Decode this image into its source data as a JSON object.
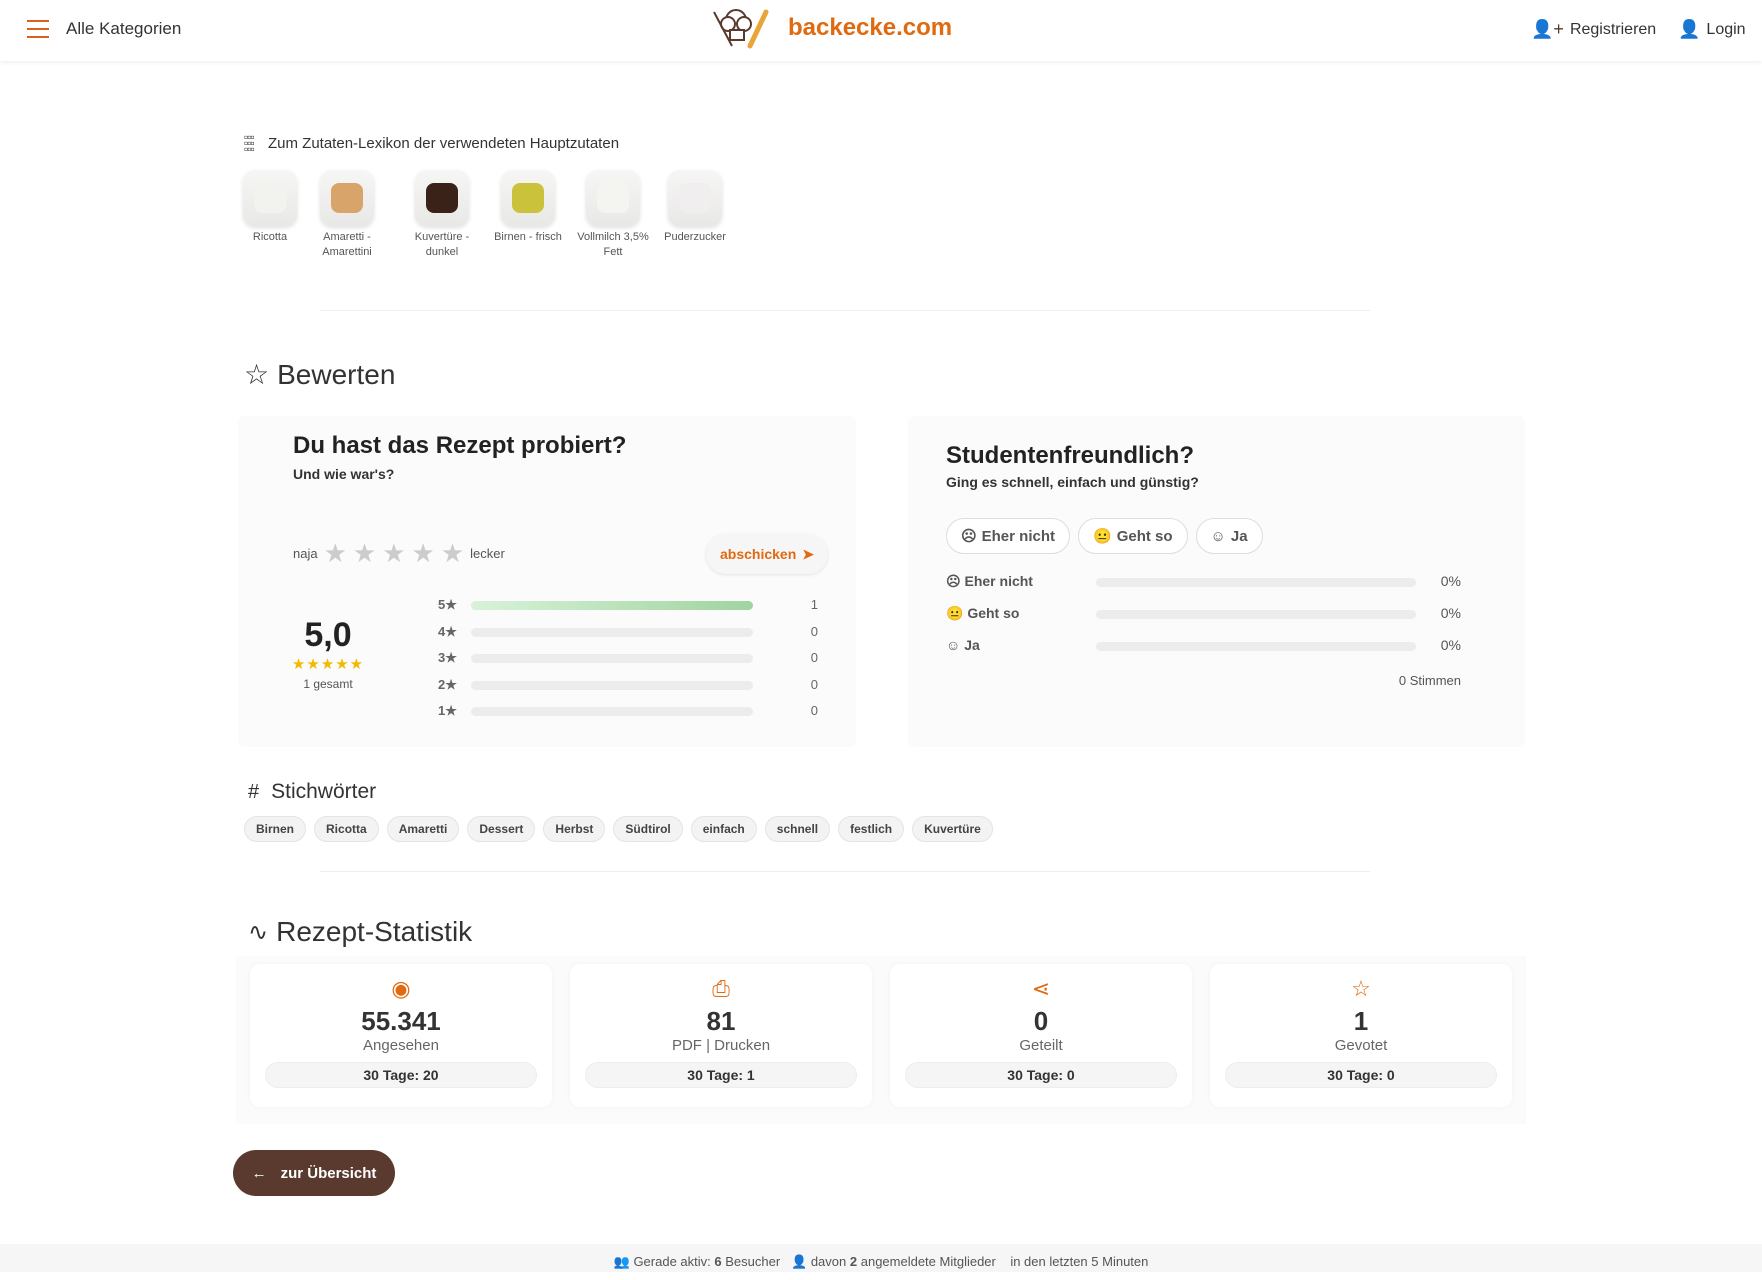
{
  "header": {
    "menu_label": "Alle Kategorien",
    "logo_text": "backecke.com",
    "register": "Registrieren",
    "login": "Login"
  },
  "ingredients": {
    "heading": "Zum Zutaten-Lexikon der verwendeten Hauptzutaten",
    "items": [
      {
        "label": "Ricotta",
        "color": "#f2f2ee"
      },
      {
        "label": "Amaretti - Amarettini",
        "color": "#d9a46a"
      },
      {
        "label": "Kuvertüre - dunkel",
        "color": "#3a2218"
      },
      {
        "label": "Birnen - frisch",
        "color": "#c9c23a"
      },
      {
        "label": "Vollmilch 3,5% Fett",
        "color": "#f4f4f0"
      },
      {
        "label": "Puderzucker",
        "color": "#f0eeee"
      }
    ]
  },
  "rating": {
    "title": "Bewerten",
    "card_title": "Du hast das Rezept probiert?",
    "card_sub": "Und wie war's?",
    "low": "naja",
    "high": "lecker",
    "submit": "abschicken",
    "average": "5,0",
    "total": "1 gesamt",
    "rows": [
      {
        "label": "5★",
        "count": "1",
        "fraction": 1
      },
      {
        "label": "4★",
        "count": "0",
        "fraction": 0
      },
      {
        "label": "3★",
        "count": "0",
        "fraction": 0
      },
      {
        "label": "2★",
        "count": "0",
        "fraction": 0
      },
      {
        "label": "1★",
        "count": "0",
        "fraction": 0
      }
    ]
  },
  "student": {
    "title": "Studentenfreundlich?",
    "sub": "Ging es schnell, einfach und günstig?",
    "options": [
      "Eher nicht",
      "Geht so",
      "Ja"
    ],
    "results": [
      {
        "label": "Eher nicht",
        "pct": "0%"
      },
      {
        "label": "Geht so",
        "pct": "0%"
      },
      {
        "label": "Ja",
        "pct": "0%"
      }
    ],
    "votes": "0 Stimmen"
  },
  "tags": {
    "title": "Stichwörter",
    "items": [
      "Birnen",
      "Ricotta",
      "Amaretti",
      "Dessert",
      "Herbst",
      "Südtirol",
      "einfach",
      "schnell",
      "festlich",
      "Kuvertüre"
    ]
  },
  "stats": {
    "title": "Rezept-Statistik",
    "items": [
      {
        "icon": "eye-icon",
        "num": "55.341",
        "label": "Angesehen",
        "d30": "30 Tage: 20"
      },
      {
        "icon": "printer-icon",
        "num": "81",
        "label": "PDF | Drucken",
        "d30": "30 Tage: 1"
      },
      {
        "icon": "share-icon",
        "num": "0",
        "label": "Geteilt",
        "d30": "30 Tage: 0"
      },
      {
        "icon": "star-icon",
        "num": "1",
        "label": "Gevotet",
        "d30": "30 Tage: 0"
      }
    ]
  },
  "back": "zur Übersicht",
  "footer": {
    "a": "Gerade aktiv:",
    "visitors": "6",
    "b": "Besucher",
    "c": "davon",
    "members": "2",
    "d": "angemeldete Mitglieder",
    "e": "in den letzten 5 Minuten"
  },
  "colors": {
    "accent": "#e06a10",
    "brown": "#5a3a2e",
    "bar_green": "#9fd4a0",
    "gold": "#f5b800"
  }
}
